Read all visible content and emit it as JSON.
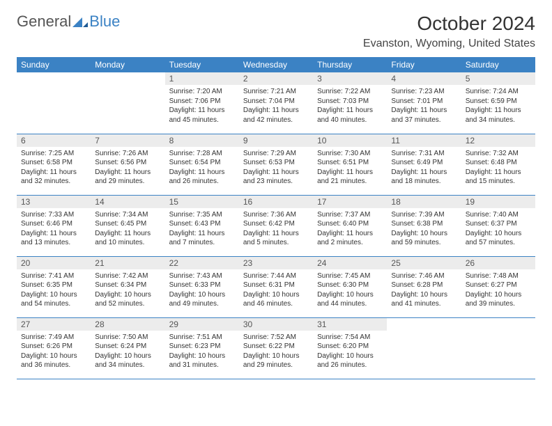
{
  "logo": {
    "general": "General",
    "blue": "Blue"
  },
  "title": "October 2024",
  "location": "Evanston, Wyoming, United States",
  "day_headers": [
    "Sunday",
    "Monday",
    "Tuesday",
    "Wednesday",
    "Thursday",
    "Friday",
    "Saturday"
  ],
  "colors": {
    "header_bg": "#3b82c4",
    "header_fg": "#ffffff",
    "daynum_bg": "#ececec",
    "row_border": "#3b82c4"
  },
  "weeks": [
    [
      null,
      null,
      {
        "num": "1",
        "sunrise": "Sunrise: 7:20 AM",
        "sunset": "Sunset: 7:06 PM",
        "daylight": "Daylight: 11 hours and 45 minutes."
      },
      {
        "num": "2",
        "sunrise": "Sunrise: 7:21 AM",
        "sunset": "Sunset: 7:04 PM",
        "daylight": "Daylight: 11 hours and 42 minutes."
      },
      {
        "num": "3",
        "sunrise": "Sunrise: 7:22 AM",
        "sunset": "Sunset: 7:03 PM",
        "daylight": "Daylight: 11 hours and 40 minutes."
      },
      {
        "num": "4",
        "sunrise": "Sunrise: 7:23 AM",
        "sunset": "Sunset: 7:01 PM",
        "daylight": "Daylight: 11 hours and 37 minutes."
      },
      {
        "num": "5",
        "sunrise": "Sunrise: 7:24 AM",
        "sunset": "Sunset: 6:59 PM",
        "daylight": "Daylight: 11 hours and 34 minutes."
      }
    ],
    [
      {
        "num": "6",
        "sunrise": "Sunrise: 7:25 AM",
        "sunset": "Sunset: 6:58 PM",
        "daylight": "Daylight: 11 hours and 32 minutes."
      },
      {
        "num": "7",
        "sunrise": "Sunrise: 7:26 AM",
        "sunset": "Sunset: 6:56 PM",
        "daylight": "Daylight: 11 hours and 29 minutes."
      },
      {
        "num": "8",
        "sunrise": "Sunrise: 7:28 AM",
        "sunset": "Sunset: 6:54 PM",
        "daylight": "Daylight: 11 hours and 26 minutes."
      },
      {
        "num": "9",
        "sunrise": "Sunrise: 7:29 AM",
        "sunset": "Sunset: 6:53 PM",
        "daylight": "Daylight: 11 hours and 23 minutes."
      },
      {
        "num": "10",
        "sunrise": "Sunrise: 7:30 AM",
        "sunset": "Sunset: 6:51 PM",
        "daylight": "Daylight: 11 hours and 21 minutes."
      },
      {
        "num": "11",
        "sunrise": "Sunrise: 7:31 AM",
        "sunset": "Sunset: 6:49 PM",
        "daylight": "Daylight: 11 hours and 18 minutes."
      },
      {
        "num": "12",
        "sunrise": "Sunrise: 7:32 AM",
        "sunset": "Sunset: 6:48 PM",
        "daylight": "Daylight: 11 hours and 15 minutes."
      }
    ],
    [
      {
        "num": "13",
        "sunrise": "Sunrise: 7:33 AM",
        "sunset": "Sunset: 6:46 PM",
        "daylight": "Daylight: 11 hours and 13 minutes."
      },
      {
        "num": "14",
        "sunrise": "Sunrise: 7:34 AM",
        "sunset": "Sunset: 6:45 PM",
        "daylight": "Daylight: 11 hours and 10 minutes."
      },
      {
        "num": "15",
        "sunrise": "Sunrise: 7:35 AM",
        "sunset": "Sunset: 6:43 PM",
        "daylight": "Daylight: 11 hours and 7 minutes."
      },
      {
        "num": "16",
        "sunrise": "Sunrise: 7:36 AM",
        "sunset": "Sunset: 6:42 PM",
        "daylight": "Daylight: 11 hours and 5 minutes."
      },
      {
        "num": "17",
        "sunrise": "Sunrise: 7:37 AM",
        "sunset": "Sunset: 6:40 PM",
        "daylight": "Daylight: 11 hours and 2 minutes."
      },
      {
        "num": "18",
        "sunrise": "Sunrise: 7:39 AM",
        "sunset": "Sunset: 6:38 PM",
        "daylight": "Daylight: 10 hours and 59 minutes."
      },
      {
        "num": "19",
        "sunrise": "Sunrise: 7:40 AM",
        "sunset": "Sunset: 6:37 PM",
        "daylight": "Daylight: 10 hours and 57 minutes."
      }
    ],
    [
      {
        "num": "20",
        "sunrise": "Sunrise: 7:41 AM",
        "sunset": "Sunset: 6:35 PM",
        "daylight": "Daylight: 10 hours and 54 minutes."
      },
      {
        "num": "21",
        "sunrise": "Sunrise: 7:42 AM",
        "sunset": "Sunset: 6:34 PM",
        "daylight": "Daylight: 10 hours and 52 minutes."
      },
      {
        "num": "22",
        "sunrise": "Sunrise: 7:43 AM",
        "sunset": "Sunset: 6:33 PM",
        "daylight": "Daylight: 10 hours and 49 minutes."
      },
      {
        "num": "23",
        "sunrise": "Sunrise: 7:44 AM",
        "sunset": "Sunset: 6:31 PM",
        "daylight": "Daylight: 10 hours and 46 minutes."
      },
      {
        "num": "24",
        "sunrise": "Sunrise: 7:45 AM",
        "sunset": "Sunset: 6:30 PM",
        "daylight": "Daylight: 10 hours and 44 minutes."
      },
      {
        "num": "25",
        "sunrise": "Sunrise: 7:46 AM",
        "sunset": "Sunset: 6:28 PM",
        "daylight": "Daylight: 10 hours and 41 minutes."
      },
      {
        "num": "26",
        "sunrise": "Sunrise: 7:48 AM",
        "sunset": "Sunset: 6:27 PM",
        "daylight": "Daylight: 10 hours and 39 minutes."
      }
    ],
    [
      {
        "num": "27",
        "sunrise": "Sunrise: 7:49 AM",
        "sunset": "Sunset: 6:26 PM",
        "daylight": "Daylight: 10 hours and 36 minutes."
      },
      {
        "num": "28",
        "sunrise": "Sunrise: 7:50 AM",
        "sunset": "Sunset: 6:24 PM",
        "daylight": "Daylight: 10 hours and 34 minutes."
      },
      {
        "num": "29",
        "sunrise": "Sunrise: 7:51 AM",
        "sunset": "Sunset: 6:23 PM",
        "daylight": "Daylight: 10 hours and 31 minutes."
      },
      {
        "num": "30",
        "sunrise": "Sunrise: 7:52 AM",
        "sunset": "Sunset: 6:22 PM",
        "daylight": "Daylight: 10 hours and 29 minutes."
      },
      {
        "num": "31",
        "sunrise": "Sunrise: 7:54 AM",
        "sunset": "Sunset: 6:20 PM",
        "daylight": "Daylight: 10 hours and 26 minutes."
      },
      null,
      null
    ]
  ]
}
